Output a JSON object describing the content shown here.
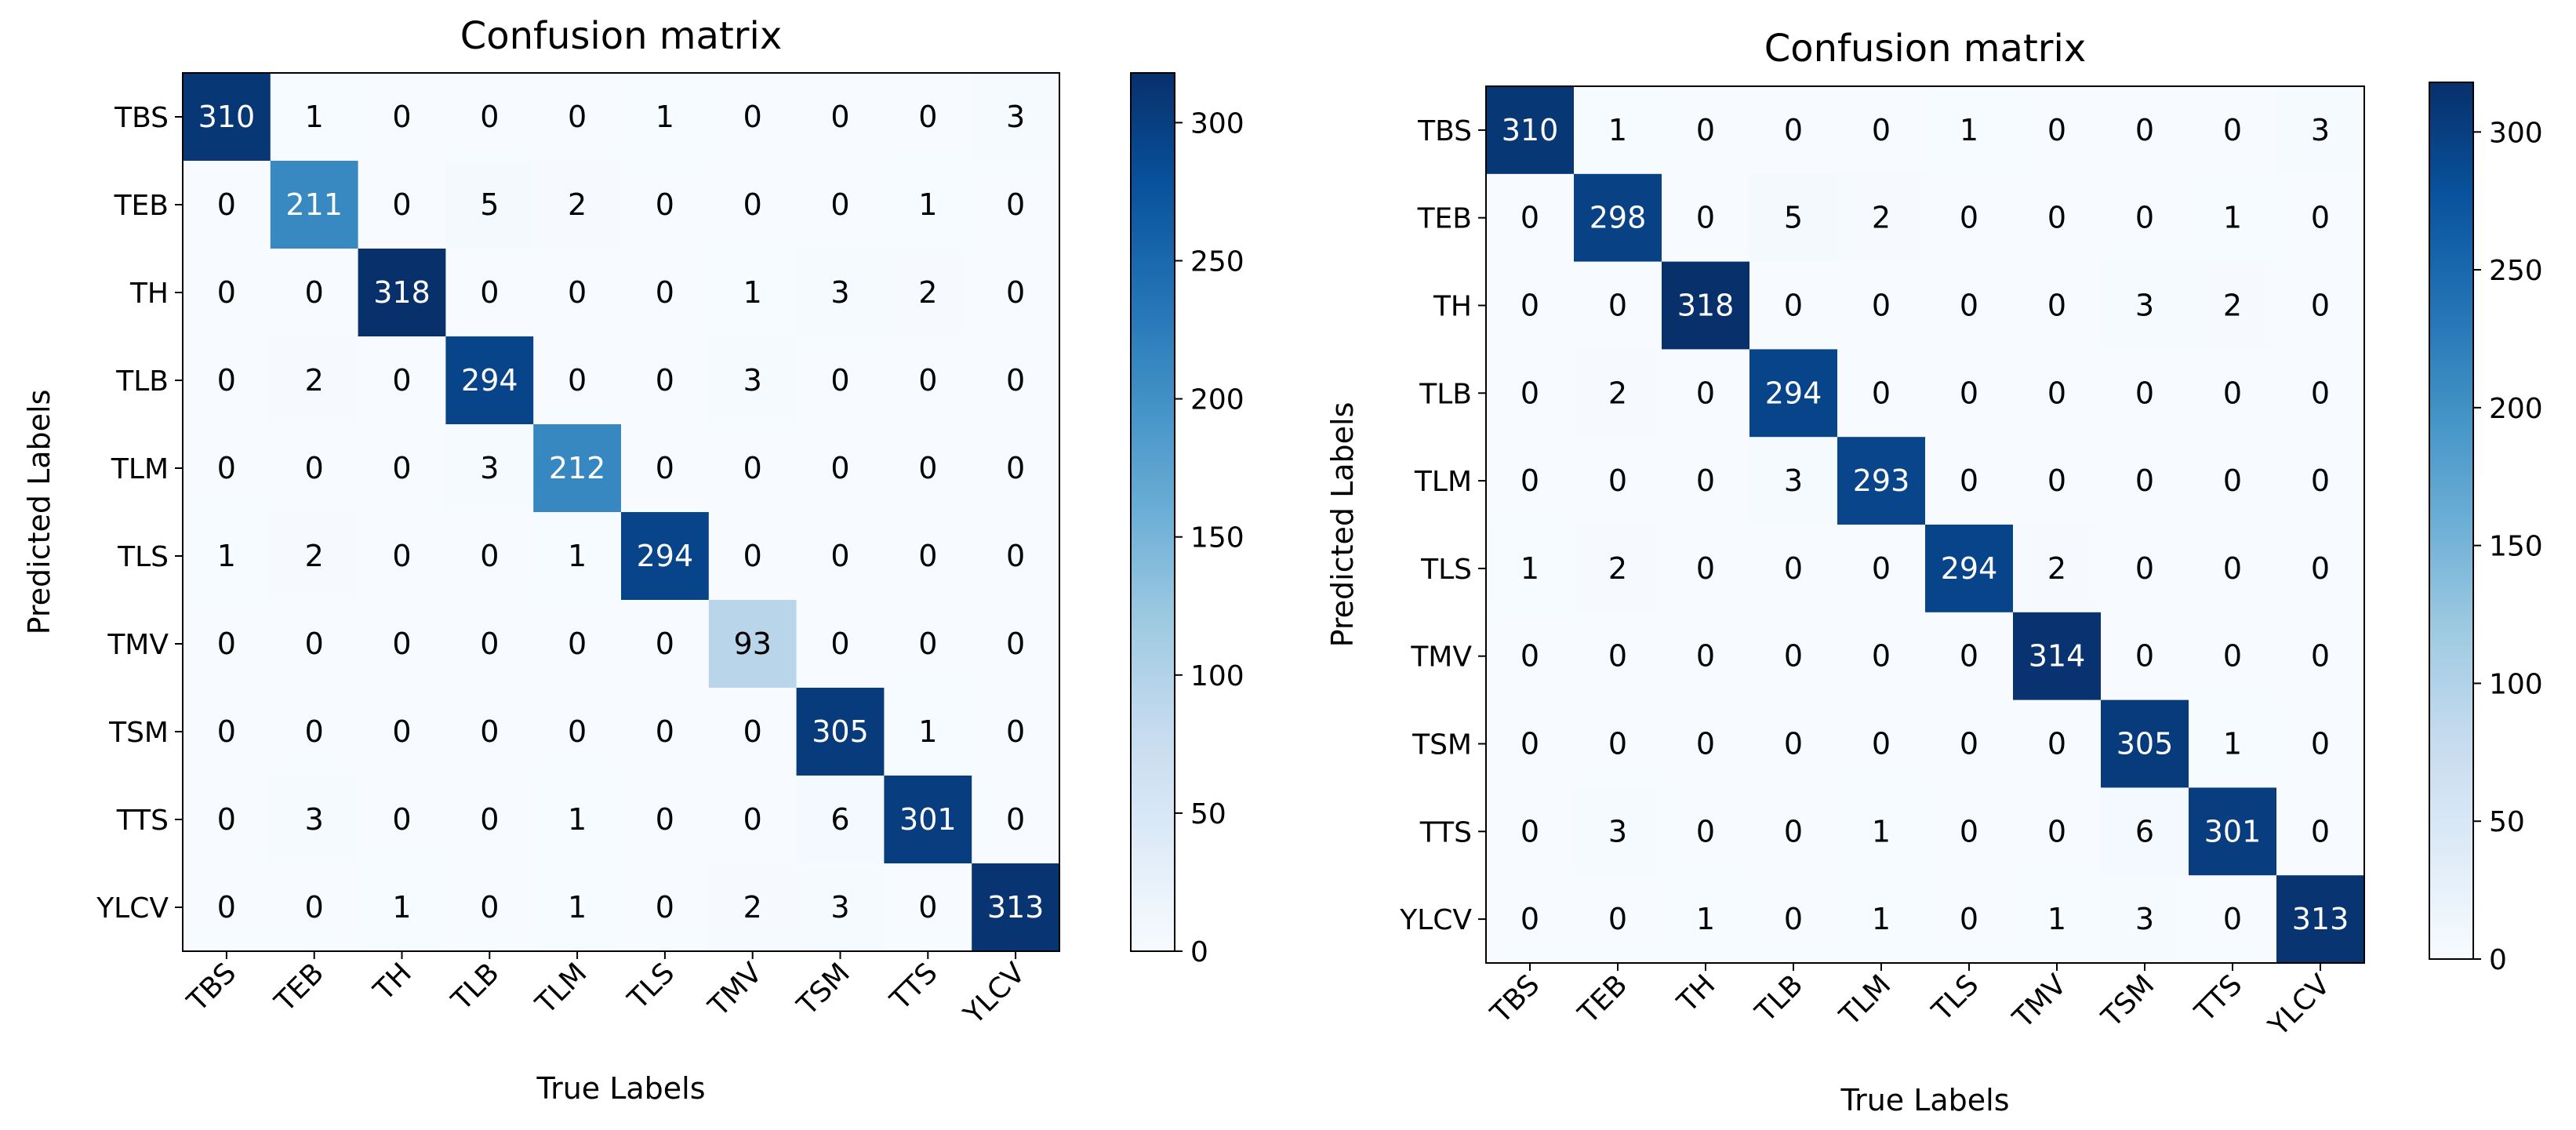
{
  "chart_data": [
    {
      "type": "heatmap",
      "title": "Confusion matrix",
      "xlabel": "True Labels",
      "ylabel": "Predicted Labels",
      "x_categories": [
        "TBS",
        "TEB",
        "TH",
        "TLB",
        "TLM",
        "TLS",
        "TMV",
        "TSM",
        "TTS",
        "YLCV"
      ],
      "y_categories": [
        "TBS",
        "TEB",
        "TH",
        "TLB",
        "TLM",
        "TLS",
        "TMV",
        "TSM",
        "TTS",
        "YLCV"
      ],
      "values": [
        [
          310,
          1,
          0,
          0,
          0,
          1,
          0,
          0,
          0,
          3
        ],
        [
          0,
          211,
          0,
          5,
          2,
          0,
          0,
          0,
          1,
          0
        ],
        [
          0,
          0,
          318,
          0,
          0,
          0,
          1,
          3,
          2,
          0
        ],
        [
          0,
          2,
          0,
          294,
          0,
          0,
          3,
          0,
          0,
          0
        ],
        [
          0,
          0,
          0,
          3,
          212,
          0,
          0,
          0,
          0,
          0
        ],
        [
          1,
          2,
          0,
          0,
          1,
          294,
          0,
          0,
          0,
          0
        ],
        [
          0,
          0,
          0,
          0,
          0,
          0,
          93,
          0,
          0,
          0
        ],
        [
          0,
          0,
          0,
          0,
          0,
          0,
          0,
          305,
          1,
          0
        ],
        [
          0,
          3,
          0,
          0,
          1,
          0,
          0,
          6,
          301,
          0
        ],
        [
          0,
          0,
          1,
          0,
          1,
          0,
          2,
          3,
          0,
          313
        ]
      ],
      "colorbar": {
        "range": [
          0,
          318
        ],
        "ticks": [
          0,
          50,
          100,
          150,
          200,
          250,
          300
        ]
      },
      "colormap": [
        "#f7fbff",
        "#deebf7",
        "#c6dbef",
        "#9ecae1",
        "#6baed6",
        "#4292c6",
        "#2171b5",
        "#08519c",
        "#08306b"
      ]
    },
    {
      "type": "heatmap",
      "title": "Confusion matrix",
      "xlabel": "True Labels",
      "ylabel": "Predicted Labels",
      "x_categories": [
        "TBS",
        "TEB",
        "TH",
        "TLB",
        "TLM",
        "TLS",
        "TMV",
        "TSM",
        "TTS",
        "YLCV"
      ],
      "y_categories": [
        "TBS",
        "TEB",
        "TH",
        "TLB",
        "TLM",
        "TLS",
        "TMV",
        "TSM",
        "TTS",
        "YLCV"
      ],
      "values": [
        [
          310,
          1,
          0,
          0,
          0,
          1,
          0,
          0,
          0,
          3
        ],
        [
          0,
          298,
          0,
          5,
          2,
          0,
          0,
          0,
          1,
          0
        ],
        [
          0,
          0,
          318,
          0,
          0,
          0,
          0,
          3,
          2,
          0
        ],
        [
          0,
          2,
          0,
          294,
          0,
          0,
          0,
          0,
          0,
          0
        ],
        [
          0,
          0,
          0,
          3,
          293,
          0,
          0,
          0,
          0,
          0
        ],
        [
          1,
          2,
          0,
          0,
          0,
          294,
          2,
          0,
          0,
          0
        ],
        [
          0,
          0,
          0,
          0,
          0,
          0,
          314,
          0,
          0,
          0
        ],
        [
          0,
          0,
          0,
          0,
          0,
          0,
          0,
          305,
          1,
          0
        ],
        [
          0,
          3,
          0,
          0,
          1,
          0,
          0,
          6,
          301,
          0
        ],
        [
          0,
          0,
          1,
          0,
          1,
          0,
          1,
          3,
          0,
          313
        ]
      ],
      "colorbar": {
        "range": [
          0,
          318
        ],
        "ticks": [
          0,
          50,
          100,
          150,
          200,
          250,
          300
        ]
      },
      "colormap": [
        "#f7fbff",
        "#deebf7",
        "#c6dbef",
        "#9ecae1",
        "#6baed6",
        "#4292c6",
        "#2171b5",
        "#08519c",
        "#08306b"
      ]
    }
  ]
}
